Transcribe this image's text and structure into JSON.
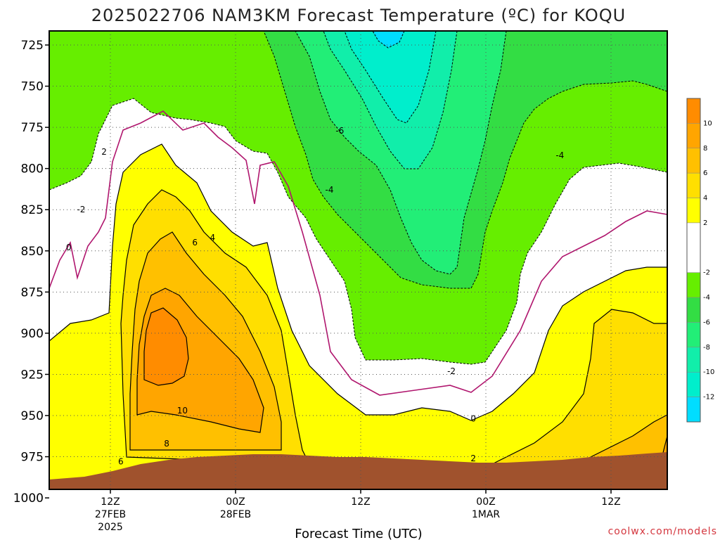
{
  "chart_data": {
    "type": "heatmap",
    "title": "2025022706 NAM3KM Forecast Temperature (ºC) for KOQU",
    "xlabel": "Forecast Time (UTC)",
    "ylabel": "",
    "y_axis": {
      "ticks": [
        725,
        750,
        775,
        800,
        825,
        850,
        875,
        900,
        925,
        950,
        975,
        1000
      ],
      "range": [
        1015,
        715
      ],
      "direction": "pressure increases downward"
    },
    "x_axis": {
      "ticks": [
        {
          "hour": 6,
          "label1": "12Z",
          "label2": "27FEB",
          "label3": "2025"
        },
        {
          "hour": 18,
          "label1": "00Z",
          "label2": "28FEB",
          "label3": ""
        },
        {
          "hour": 30,
          "label1": "12Z",
          "label2": "",
          "label3": ""
        },
        {
          "hour": 42,
          "label1": "00Z",
          "label2": "1MAR",
          "label3": ""
        },
        {
          "hour": 54,
          "label1": "12Z",
          "label2": "",
          "label3": ""
        }
      ],
      "range": [
        0,
        60
      ]
    },
    "colorbar": {
      "ticks": [
        10,
        8,
        6,
        4,
        2,
        -2,
        -4,
        -6,
        -8,
        -10,
        -12
      ],
      "levels": [
        {
          "from": 10,
          "to": 12,
          "color": "#ff8c00"
        },
        {
          "from": 8,
          "to": 10,
          "color": "#ffa500"
        },
        {
          "from": 6,
          "to": 8,
          "color": "#ffc000"
        },
        {
          "from": 4,
          "to": 6,
          "color": "#ffdf00"
        },
        {
          "from": 2,
          "to": 4,
          "color": "#ffff00"
        },
        {
          "from": -2,
          "to": 2,
          "color": "#ffffff"
        },
        {
          "from": -4,
          "to": -2,
          "color": "#66ee00"
        },
        {
          "from": -6,
          "to": -4,
          "color": "#33dd44"
        },
        {
          "from": -8,
          "to": -6,
          "color": "#22ee77"
        },
        {
          "from": -10,
          "to": -8,
          "color": "#11eeaa"
        },
        {
          "from": -12,
          "to": -10,
          "color": "#00eecc"
        },
        {
          "from": -14,
          "to": -12,
          "color": "#00ddff"
        }
      ]
    },
    "contour_labels": [
      {
        "text": "2",
        "hour": 5.4,
        "p": 790
      },
      {
        "text": "4",
        "hour": 15.8,
        "p": 842
      },
      {
        "text": "6",
        "hour": 14.1,
        "p": 845
      },
      {
        "text": "0",
        "hour": 2.0,
        "p": 848
      },
      {
        "text": "-2",
        "hour": 3.2,
        "p": 825
      },
      {
        "text": "10",
        "hour": 12.9,
        "p": 947
      },
      {
        "text": "8",
        "hour": 11.4,
        "p": 967
      },
      {
        "text": "6",
        "hour": 7.0,
        "p": 978
      },
      {
        "text": "-6",
        "hour": 28.0,
        "p": 777
      },
      {
        "text": "-4",
        "hour": 27.0,
        "p": 813
      },
      {
        "text": "-4",
        "hour": 49.1,
        "p": 792
      },
      {
        "text": "-2",
        "hour": 38.7,
        "p": 923
      },
      {
        "text": "0",
        "hour": 40.8,
        "p": 952
      },
      {
        "text": "2",
        "hour": 40.8,
        "p": 976
      }
    ],
    "grid": true
  },
  "credit": "coolwx.com/models"
}
